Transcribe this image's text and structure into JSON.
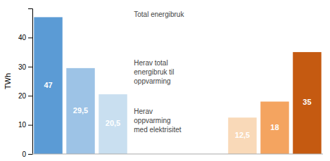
{
  "chart_data": {
    "type": "bar",
    "ylabel": "TWh",
    "categories": [
      null,
      null,
      null,
      null,
      null,
      null
    ],
    "values": [
      47,
      29.5,
      20.5,
      12.5,
      18,
      35
    ],
    "value_labels": [
      "47",
      "29,5",
      "20,5",
      "12,5",
      "18",
      "35"
    ],
    "colors": [
      "#5b9bd5",
      "#9dc3e6",
      "#c9dff0",
      "#f9d9b8",
      "#f4a460",
      "#c55a11"
    ],
    "ylim": [
      0,
      50
    ],
    "yticks": [
      0,
      10,
      20,
      30,
      40
    ],
    "data_labels": true,
    "tick_labels": "y",
    "annotations": [
      "Total energibruk",
      "Herav total\nenergibruk til\noppvarming",
      "Herav\noppvarming\nmed elektrisitet"
    ]
  }
}
